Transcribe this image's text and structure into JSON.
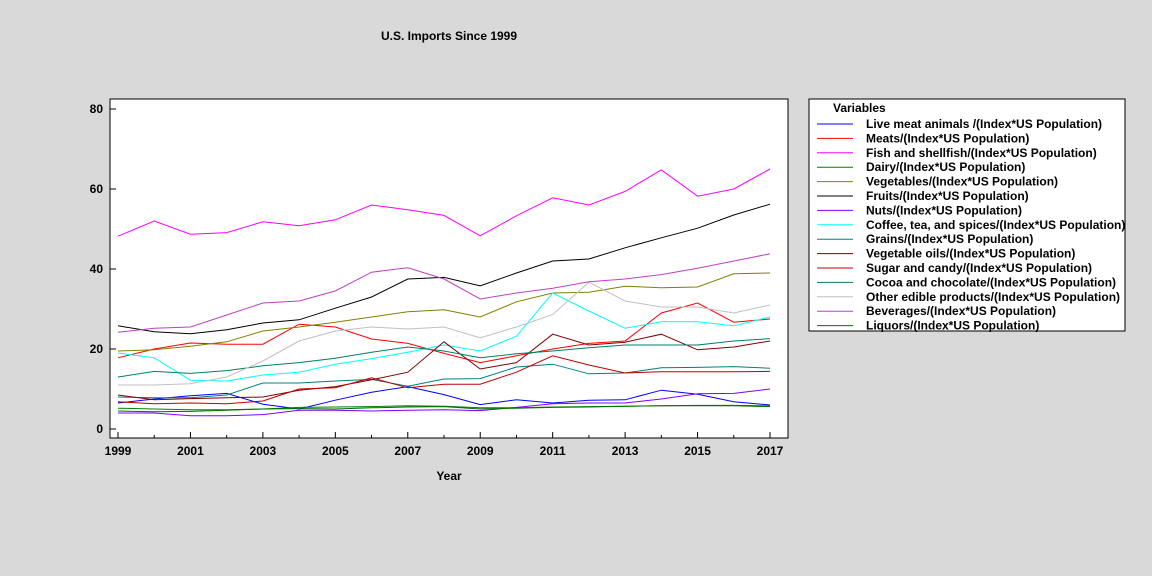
{
  "chart_data": {
    "type": "line",
    "title": "U.S. Imports Since 1999",
    "xlabel": "Year",
    "ylabel": "",
    "xlim": [
      1999,
      2017
    ],
    "ylim": [
      0,
      80
    ],
    "x_ticks": [
      1999,
      2001,
      2003,
      2005,
      2007,
      2009,
      2011,
      2013,
      2015,
      2017
    ],
    "y_ticks": [
      0,
      20,
      40,
      60,
      80
    ],
    "legend_title": "Variables",
    "legend_position": "right",
    "x": [
      1999,
      2000,
      2001,
      2002,
      2003,
      2004,
      2005,
      2006,
      2007,
      2008,
      2009,
      2010,
      2011,
      2012,
      2013,
      2014,
      2015,
      2016,
      2017
    ],
    "series": [
      {
        "name": "Live meat animals /(Index*US Population)",
        "color": "#0000ff",
        "values": [
          6.5,
          7.5,
          8.3,
          8.9,
          6.2,
          5.0,
          7.2,
          9.2,
          10.6,
          8.6,
          6.1,
          7.3,
          6.5,
          7.2,
          7.3,
          9.7,
          8.7,
          6.8,
          6.0
        ]
      },
      {
        "name": "Meats/(Index*US Population)",
        "color": "#ff0000",
        "values": [
          17.8,
          20.0,
          21.5,
          21.2,
          21.2,
          26.2,
          25.5,
          22.5,
          21.4,
          18.9,
          16.6,
          18.3,
          20.0,
          21.4,
          22.0,
          29.0,
          31.5,
          26.7,
          27.5
        ]
      },
      {
        "name": "Fish and shellfish/(Index*US Population)",
        "color": "#ff00ff",
        "values": [
          48.2,
          52.0,
          48.7,
          49.1,
          51.8,
          50.8,
          52.3,
          56.0,
          54.8,
          53.4,
          48.3,
          53.3,
          57.8,
          56.0,
          59.4,
          64.8,
          58.2,
          60.0,
          65.0
        ]
      },
      {
        "name": "Dairy/(Index*US Population)",
        "color": "#008000",
        "values": [
          5.2,
          5.0,
          4.8,
          4.8,
          5.0,
          5.4,
          5.5,
          5.6,
          5.8,
          5.7,
          5.3,
          5.3,
          5.5,
          5.6,
          5.7,
          5.8,
          5.9,
          5.9,
          5.8
        ]
      },
      {
        "name": "Vegetables/(Index*US Population)",
        "color": "#808000",
        "values": [
          19.5,
          19.8,
          20.7,
          21.8,
          24.5,
          25.5,
          26.7,
          28.0,
          29.3,
          29.8,
          28.0,
          31.8,
          34.0,
          34.2,
          35.7,
          35.3,
          35.5,
          38.8,
          39.0
        ]
      },
      {
        "name": "Fruits/(Index*US Population)",
        "color": "#000000",
        "values": [
          25.8,
          24.3,
          23.8,
          24.8,
          26.5,
          27.3,
          30.2,
          33.0,
          37.5,
          37.9,
          35.8,
          39.0,
          42.0,
          42.5,
          45.3,
          47.8,
          50.2,
          53.5,
          56.2
        ]
      },
      {
        "name": "Nuts/(Index*US Population)",
        "color": "#8000ff",
        "values": [
          4.0,
          4.0,
          3.3,
          3.3,
          3.6,
          4.7,
          4.7,
          4.5,
          4.7,
          4.8,
          4.6,
          5.4,
          6.3,
          6.5,
          6.5,
          7.5,
          8.8,
          8.9,
          10.0
        ]
      },
      {
        "name": "Coffee, tea, and spices/(Index*US Population)",
        "color": "#00ffff",
        "values": [
          19.0,
          17.8,
          12.2,
          12.0,
          13.5,
          14.2,
          16.2,
          17.6,
          19.2,
          21.0,
          19.5,
          23.2,
          34.0,
          29.5,
          25.2,
          26.8,
          26.8,
          25.8,
          28.0
        ]
      },
      {
        "name": "Grains/(Index*US Population)",
        "color": "#008080",
        "values": [
          8.0,
          7.8,
          7.8,
          8.5,
          11.5,
          11.5,
          12.0,
          12.4,
          10.7,
          12.5,
          12.6,
          15.5,
          16.2,
          13.8,
          14.0,
          15.3,
          15.4,
          15.6,
          15.2
        ]
      },
      {
        "name": "Vegetable oils/(Index*US Population)",
        "color": "#800000",
        "values": [
          8.5,
          7.3,
          7.6,
          7.8,
          8.0,
          9.7,
          10.6,
          12.3,
          14.2,
          21.8,
          15.0,
          16.6,
          23.7,
          21.0,
          21.7,
          23.7,
          19.8,
          20.5,
          22.0
        ]
      },
      {
        "name": "Sugar and candy/(Index*US Population)",
        "color": "#c00000",
        "values": [
          6.8,
          6.3,
          6.5,
          6.3,
          7.0,
          10.0,
          10.3,
          12.8,
          10.3,
          11.2,
          11.2,
          14.2,
          18.3,
          16.0,
          14.0,
          14.3,
          14.3,
          14.3,
          14.4
        ]
      },
      {
        "name": "Cocoa and chocolate/(Index*US Population)",
        "color": "#008060",
        "values": [
          13.0,
          14.4,
          13.9,
          14.6,
          15.8,
          16.6,
          17.7,
          19.2,
          20.5,
          19.5,
          17.8,
          18.8,
          19.5,
          20.3,
          21.0,
          21.0,
          21.0,
          22.0,
          22.6
        ]
      },
      {
        "name": "Other edible products/(Index*US Population)",
        "color": "#c0c0c0",
        "values": [
          11.0,
          11.0,
          11.3,
          13.0,
          17.0,
          22.0,
          24.5,
          25.5,
          25.0,
          25.5,
          22.8,
          25.5,
          28.6,
          36.7,
          32.0,
          30.5,
          30.5,
          29.0,
          31.0
        ]
      },
      {
        "name": "Beverages/(Index*US Population)",
        "color": "#c040c0",
        "values": [
          24.2,
          25.2,
          25.5,
          28.5,
          31.5,
          32.0,
          34.5,
          39.2,
          40.3,
          37.5,
          32.5,
          34.0,
          35.2,
          36.8,
          37.5,
          38.6,
          40.2,
          42.0,
          43.8
        ]
      },
      {
        "name": "Liquors/(Index*US Population)",
        "color": "#007000",
        "values": [
          4.5,
          4.3,
          4.4,
          4.7,
          5.0,
          5.1,
          5.0,
          5.3,
          5.5,
          5.6,
          5.0,
          5.2,
          5.4,
          5.5,
          5.7,
          5.8,
          5.8,
          5.8,
          5.6
        ]
      }
    ]
  }
}
